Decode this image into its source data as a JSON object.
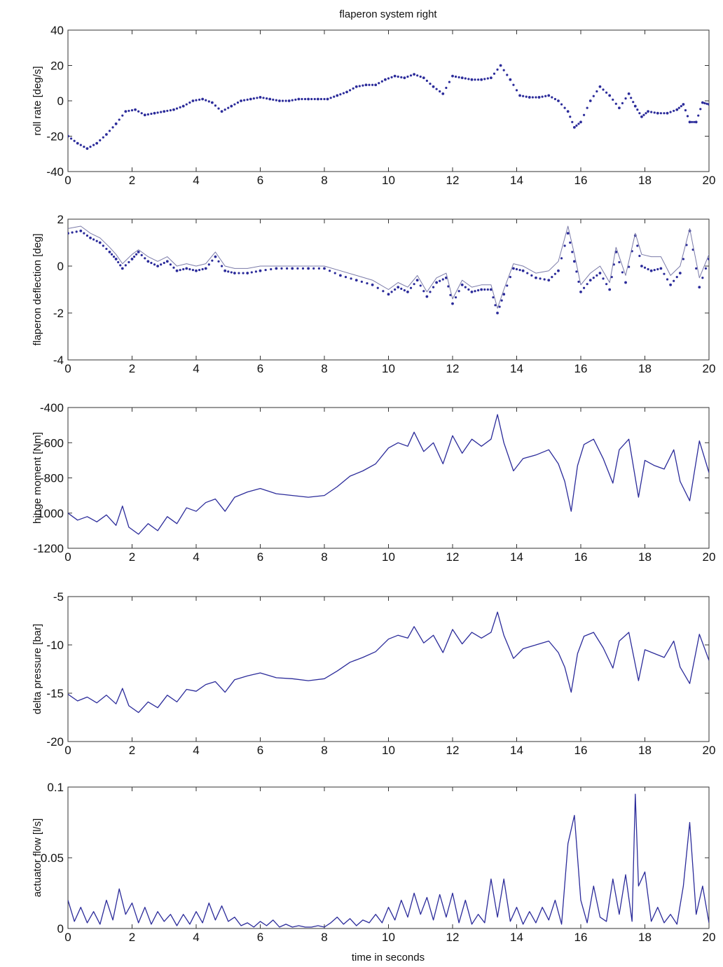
{
  "figure": {
    "title": "flaperon system right",
    "xlabel": "time in seconds"
  },
  "colors": {
    "series_primary": "#2b2b9a",
    "series_secondary": "#7a7aa8",
    "axes": "#333333"
  },
  "chart_data": [
    {
      "type": "scatter",
      "ylabel": "roll rate [deg/s]",
      "xlim": [
        0,
        20
      ],
      "ylim": [
        -40,
        40
      ],
      "xticks": [
        0,
        2,
        4,
        6,
        8,
        10,
        12,
        14,
        16,
        18,
        20
      ],
      "yticks": [
        40,
        20,
        0,
        -20,
        -40
      ],
      "series": [
        {
          "style": "dots",
          "x": [
            0,
            0.3,
            0.6,
            0.9,
            1.2,
            1.5,
            1.8,
            2.1,
            2.4,
            2.7,
            3.0,
            3.3,
            3.6,
            3.9,
            4.2,
            4.5,
            4.8,
            5.1,
            5.4,
            5.7,
            6.0,
            6.3,
            6.6,
            6.9,
            7.2,
            7.5,
            7.8,
            8.1,
            8.4,
            8.7,
            9.0,
            9.3,
            9.6,
            9.9,
            10.2,
            10.5,
            10.8,
            11.1,
            11.4,
            11.7,
            12.0,
            12.3,
            12.6,
            12.9,
            13.2,
            13.5,
            13.8,
            14.1,
            14.4,
            14.7,
            15.0,
            15.3,
            15.6,
            15.8,
            16.0,
            16.3,
            16.6,
            16.9,
            17.2,
            17.5,
            17.7,
            17.9,
            18.1,
            18.4,
            18.7,
            19.0,
            19.2,
            19.4,
            19.6,
            19.8,
            20.0
          ],
          "y": [
            -20,
            -24,
            -27,
            -24,
            -19,
            -13,
            -6,
            -5,
            -8,
            -7,
            -6,
            -5,
            -3,
            0,
            1,
            -1,
            -6,
            -3,
            0,
            1,
            2,
            1,
            0,
            0,
            1,
            1,
            1,
            1,
            3,
            5,
            8,
            9,
            9,
            12,
            14,
            13,
            15,
            13,
            8,
            4,
            14,
            13,
            12,
            12,
            13,
            20,
            12,
            3,
            2,
            2,
            3,
            0,
            -6,
            -15,
            -12,
            0,
            8,
            3,
            -4,
            4,
            -3,
            -9,
            -6,
            -7,
            -7,
            -5,
            -2,
            -12,
            -12,
            -1,
            -2
          ]
        }
      ]
    },
    {
      "type": "line",
      "ylabel": "flaperon deflection [deg]",
      "xlim": [
        0,
        20
      ],
      "ylim": [
        -4,
        2
      ],
      "xticks": [
        0,
        2,
        4,
        6,
        8,
        10,
        12,
        14,
        16,
        18,
        20
      ],
      "yticks": [
        2,
        0,
        -2,
        -4
      ],
      "series": [
        {
          "style": "dots",
          "x": [
            0,
            0.4,
            0.7,
            1.0,
            1.3,
            1.5,
            1.7,
            2.0,
            2.2,
            2.5,
            2.8,
            3.1,
            3.4,
            3.7,
            4.0,
            4.3,
            4.6,
            4.9,
            5.2,
            5.6,
            6.0,
            6.5,
            7.0,
            7.5,
            8.0,
            8.5,
            9.0,
            9.5,
            10.0,
            10.3,
            10.6,
            10.9,
            11.2,
            11.5,
            11.8,
            12.0,
            12.3,
            12.6,
            12.9,
            13.2,
            13.4,
            13.6,
            13.9,
            14.2,
            14.6,
            15.0,
            15.3,
            15.6,
            15.8,
            16.0,
            16.3,
            16.6,
            16.9,
            17.1,
            17.4,
            17.7,
            17.9,
            18.2,
            18.5,
            18.8,
            19.1,
            19.4,
            19.7,
            20.0
          ],
          "y": [
            1.4,
            1.5,
            1.2,
            1.0,
            0.6,
            0.3,
            -0.1,
            0.3,
            0.6,
            0.2,
            0.0,
            0.2,
            -0.2,
            -0.1,
            -0.2,
            -0.1,
            0.4,
            -0.2,
            -0.3,
            -0.3,
            -0.2,
            -0.1,
            -0.1,
            -0.1,
            -0.1,
            -0.4,
            -0.6,
            -0.8,
            -1.2,
            -0.9,
            -1.1,
            -0.6,
            -1.3,
            -0.7,
            -0.5,
            -1.6,
            -0.8,
            -1.1,
            -1.0,
            -1.0,
            -2.0,
            -1.2,
            -0.1,
            -0.2,
            -0.5,
            -0.6,
            -0.2,
            1.4,
            0.2,
            -1.1,
            -0.6,
            -0.3,
            -1.0,
            0.6,
            -0.7,
            1.3,
            0.0,
            -0.2,
            -0.1,
            -0.8,
            -0.3,
            1.5,
            -0.9,
            0.3
          ]
        },
        {
          "style": "line",
          "x": [
            0,
            0.4,
            0.7,
            1.0,
            1.3,
            1.5,
            1.7,
            2.0,
            2.2,
            2.5,
            2.8,
            3.1,
            3.4,
            3.7,
            4.0,
            4.3,
            4.6,
            4.9,
            5.2,
            5.6,
            6.0,
            6.5,
            7.0,
            7.5,
            8.0,
            8.5,
            9.0,
            9.5,
            10.0,
            10.3,
            10.6,
            10.9,
            11.2,
            11.5,
            11.8,
            12.0,
            12.3,
            12.6,
            12.9,
            13.2,
            13.4,
            13.6,
            13.9,
            14.2,
            14.6,
            15.0,
            15.3,
            15.6,
            15.8,
            16.0,
            16.3,
            16.6,
            16.9,
            17.1,
            17.4,
            17.7,
            17.9,
            18.2,
            18.5,
            18.8,
            19.1,
            19.4,
            19.7,
            20.0
          ],
          "y": [
            1.6,
            1.7,
            1.4,
            1.2,
            0.8,
            0.5,
            0.1,
            0.5,
            0.7,
            0.4,
            0.2,
            0.4,
            0.0,
            0.1,
            0.0,
            0.1,
            0.6,
            0.0,
            -0.1,
            -0.1,
            0.0,
            0.0,
            0.0,
            0.0,
            0.0,
            -0.2,
            -0.4,
            -0.6,
            -1.0,
            -0.7,
            -0.9,
            -0.4,
            -1.1,
            -0.5,
            -0.3,
            -1.4,
            -0.6,
            -0.9,
            -0.8,
            -0.8,
            -1.8,
            -1.0,
            0.1,
            0.0,
            -0.3,
            -0.2,
            0.2,
            1.7,
            0.5,
            -0.8,
            -0.3,
            0.0,
            -0.7,
            0.8,
            -0.4,
            1.4,
            0.5,
            0.4,
            0.4,
            -0.4,
            0.0,
            1.6,
            -0.5,
            0.5
          ]
        }
      ]
    },
    {
      "type": "line",
      "ylabel": "hinge moment [Nm]",
      "xlim": [
        0,
        20
      ],
      "ylim": [
        -1200,
        -400
      ],
      "xticks": [
        0,
        2,
        4,
        6,
        8,
        10,
        12,
        14,
        16,
        18,
        20
      ],
      "yticks": [
        -400,
        -600,
        -800,
        -1000,
        -1200
      ],
      "series": [
        {
          "style": "line",
          "x": [
            0,
            0.3,
            0.6,
            0.9,
            1.2,
            1.5,
            1.7,
            1.9,
            2.2,
            2.5,
            2.8,
            3.1,
            3.4,
            3.7,
            4.0,
            4.3,
            4.6,
            4.9,
            5.2,
            5.6,
            6.0,
            6.5,
            7.0,
            7.5,
            8.0,
            8.4,
            8.8,
            9.2,
            9.6,
            10.0,
            10.3,
            10.6,
            10.8,
            11.1,
            11.4,
            11.7,
            12.0,
            12.3,
            12.6,
            12.9,
            13.2,
            13.4,
            13.6,
            13.9,
            14.2,
            14.6,
            15.0,
            15.3,
            15.5,
            15.7,
            15.9,
            16.1,
            16.4,
            16.7,
            17.0,
            17.2,
            17.5,
            17.8,
            18.0,
            18.3,
            18.6,
            18.9,
            19.1,
            19.4,
            19.7,
            20.0
          ],
          "y": [
            -1000,
            -1040,
            -1020,
            -1050,
            -1010,
            -1070,
            -960,
            -1080,
            -1120,
            -1060,
            -1100,
            -1020,
            -1060,
            -970,
            -990,
            -940,
            -920,
            -990,
            -910,
            -880,
            -860,
            -890,
            -900,
            -910,
            -900,
            -850,
            -790,
            -760,
            -720,
            -630,
            -600,
            -620,
            -540,
            -650,
            -600,
            -720,
            -560,
            -660,
            -580,
            -620,
            -580,
            -440,
            -600,
            -760,
            -690,
            -670,
            -640,
            -720,
            -820,
            -990,
            -730,
            -610,
            -580,
            -690,
            -830,
            -640,
            -580,
            -910,
            -700,
            -730,
            -750,
            -640,
            -820,
            -930,
            -590,
            -770
          ]
        }
      ]
    },
    {
      "type": "line",
      "ylabel": "delta pressure [bar]",
      "xlim": [
        0,
        20
      ],
      "ylim": [
        -20,
        -5
      ],
      "xticks": [
        0,
        2,
        4,
        6,
        8,
        10,
        12,
        14,
        16,
        18,
        20
      ],
      "yticks": [
        -5,
        -10,
        -15,
        -20
      ],
      "series": [
        {
          "style": "line",
          "x": [
            0,
            0.3,
            0.6,
            0.9,
            1.2,
            1.5,
            1.7,
            1.9,
            2.2,
            2.5,
            2.8,
            3.1,
            3.4,
            3.7,
            4.0,
            4.3,
            4.6,
            4.9,
            5.2,
            5.6,
            6.0,
            6.5,
            7.0,
            7.5,
            8.0,
            8.4,
            8.8,
            9.2,
            9.6,
            10.0,
            10.3,
            10.6,
            10.8,
            11.1,
            11.4,
            11.7,
            12.0,
            12.3,
            12.6,
            12.9,
            13.2,
            13.4,
            13.6,
            13.9,
            14.2,
            14.6,
            15.0,
            15.3,
            15.5,
            15.7,
            15.9,
            16.1,
            16.4,
            16.7,
            17.0,
            17.2,
            17.5,
            17.8,
            18.0,
            18.3,
            18.6,
            18.9,
            19.1,
            19.4,
            19.7,
            20.0
          ],
          "y": [
            -15.1,
            -15.8,
            -15.4,
            -16.0,
            -15.2,
            -16.1,
            -14.5,
            -16.3,
            -17.0,
            -15.9,
            -16.5,
            -15.2,
            -15.9,
            -14.6,
            -14.8,
            -14.1,
            -13.8,
            -14.9,
            -13.6,
            -13.2,
            -12.9,
            -13.4,
            -13.5,
            -13.7,
            -13.5,
            -12.7,
            -11.8,
            -11.3,
            -10.7,
            -9.4,
            -9.0,
            -9.3,
            -8.1,
            -9.8,
            -9.0,
            -10.8,
            -8.4,
            -9.9,
            -8.7,
            -9.3,
            -8.7,
            -6.6,
            -9.0,
            -11.4,
            -10.4,
            -10.0,
            -9.6,
            -10.8,
            -12.3,
            -14.9,
            -10.9,
            -9.1,
            -8.7,
            -10.3,
            -12.4,
            -9.6,
            -8.7,
            -13.7,
            -10.5,
            -10.9,
            -11.3,
            -9.6,
            -12.3,
            -14.0,
            -8.9,
            -11.6
          ]
        }
      ]
    },
    {
      "type": "line",
      "ylabel": "actuator flow [l/s]",
      "xlim": [
        0,
        20
      ],
      "ylim": [
        0,
        0.1
      ],
      "xticks": [
        0,
        2,
        4,
        6,
        8,
        10,
        12,
        14,
        16,
        18,
        20
      ],
      "yticks": [
        0.1,
        0.05,
        0
      ],
      "series": [
        {
          "style": "line",
          "x": [
            0,
            0.2,
            0.4,
            0.6,
            0.8,
            1.0,
            1.2,
            1.4,
            1.6,
            1.8,
            2.0,
            2.2,
            2.4,
            2.6,
            2.8,
            3.0,
            3.2,
            3.4,
            3.6,
            3.8,
            4.0,
            4.2,
            4.4,
            4.6,
            4.8,
            5.0,
            5.2,
            5.4,
            5.6,
            5.8,
            6.0,
            6.2,
            6.4,
            6.6,
            6.8,
            7.0,
            7.2,
            7.4,
            7.6,
            7.8,
            8.0,
            8.2,
            8.4,
            8.6,
            8.8,
            9.0,
            9.2,
            9.4,
            9.6,
            9.8,
            10.0,
            10.2,
            10.4,
            10.6,
            10.8,
            11.0,
            11.2,
            11.4,
            11.6,
            11.8,
            12.0,
            12.2,
            12.4,
            12.6,
            12.8,
            13.0,
            13.2,
            13.4,
            13.6,
            13.8,
            14.0,
            14.2,
            14.4,
            14.6,
            14.8,
            15.0,
            15.2,
            15.4,
            15.6,
            15.8,
            16.0,
            16.2,
            16.4,
            16.6,
            16.8,
            17.0,
            17.2,
            17.4,
            17.6,
            17.7,
            17.8,
            18.0,
            18.2,
            18.4,
            18.6,
            18.8,
            19.0,
            19.2,
            19.4,
            19.6,
            19.8,
            20.0
          ],
          "y": [
            0.02,
            0.005,
            0.015,
            0.004,
            0.012,
            0.003,
            0.02,
            0.006,
            0.028,
            0.01,
            0.018,
            0.004,
            0.015,
            0.003,
            0.012,
            0.005,
            0.01,
            0.002,
            0.01,
            0.003,
            0.012,
            0.004,
            0.018,
            0.006,
            0.016,
            0.005,
            0.008,
            0.002,
            0.004,
            0.001,
            0.005,
            0.002,
            0.006,
            0.001,
            0.003,
            0.001,
            0.002,
            0.001,
            0.001,
            0.002,
            0.001,
            0.004,
            0.008,
            0.003,
            0.007,
            0.002,
            0.006,
            0.004,
            0.01,
            0.004,
            0.015,
            0.006,
            0.02,
            0.008,
            0.025,
            0.01,
            0.022,
            0.006,
            0.024,
            0.008,
            0.025,
            0.004,
            0.02,
            0.003,
            0.01,
            0.004,
            0.035,
            0.008,
            0.035,
            0.005,
            0.015,
            0.003,
            0.012,
            0.004,
            0.015,
            0.006,
            0.02,
            0.003,
            0.06,
            0.08,
            0.02,
            0.004,
            0.03,
            0.008,
            0.005,
            0.035,
            0.01,
            0.038,
            0.005,
            0.095,
            0.03,
            0.04,
            0.005,
            0.015,
            0.004,
            0.01,
            0.003,
            0.03,
            0.075,
            0.01,
            0.03,
            0.004
          ]
        }
      ]
    }
  ]
}
